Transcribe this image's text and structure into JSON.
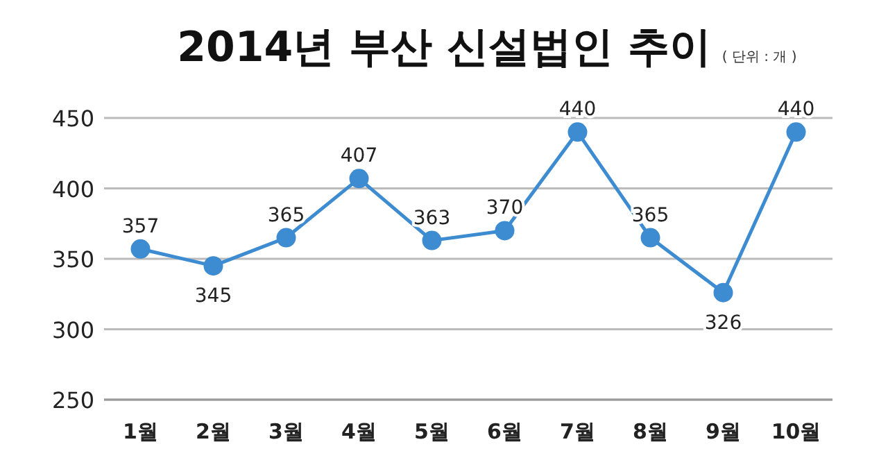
{
  "chart_data": {
    "type": "line",
    "title": "2014년 부산 신설법인 추이",
    "subtitle": "( 단위 : 개 )",
    "categories": [
      "1월",
      "2월",
      "3월",
      "4월",
      "5월",
      "6월",
      "7월",
      "8월",
      "9월",
      "10월"
    ],
    "series": [
      {
        "color": "#3d8bd0",
        "values": [
          357,
          345,
          365,
          407,
          363,
          370,
          440,
          365,
          326,
          440
        ]
      }
    ],
    "ylim": [
      250,
      450
    ],
    "yticks": [
      250,
      300,
      350,
      400,
      450
    ],
    "grid": "y",
    "marker": "circle",
    "line_style": "solid",
    "data_labels": true
  }
}
